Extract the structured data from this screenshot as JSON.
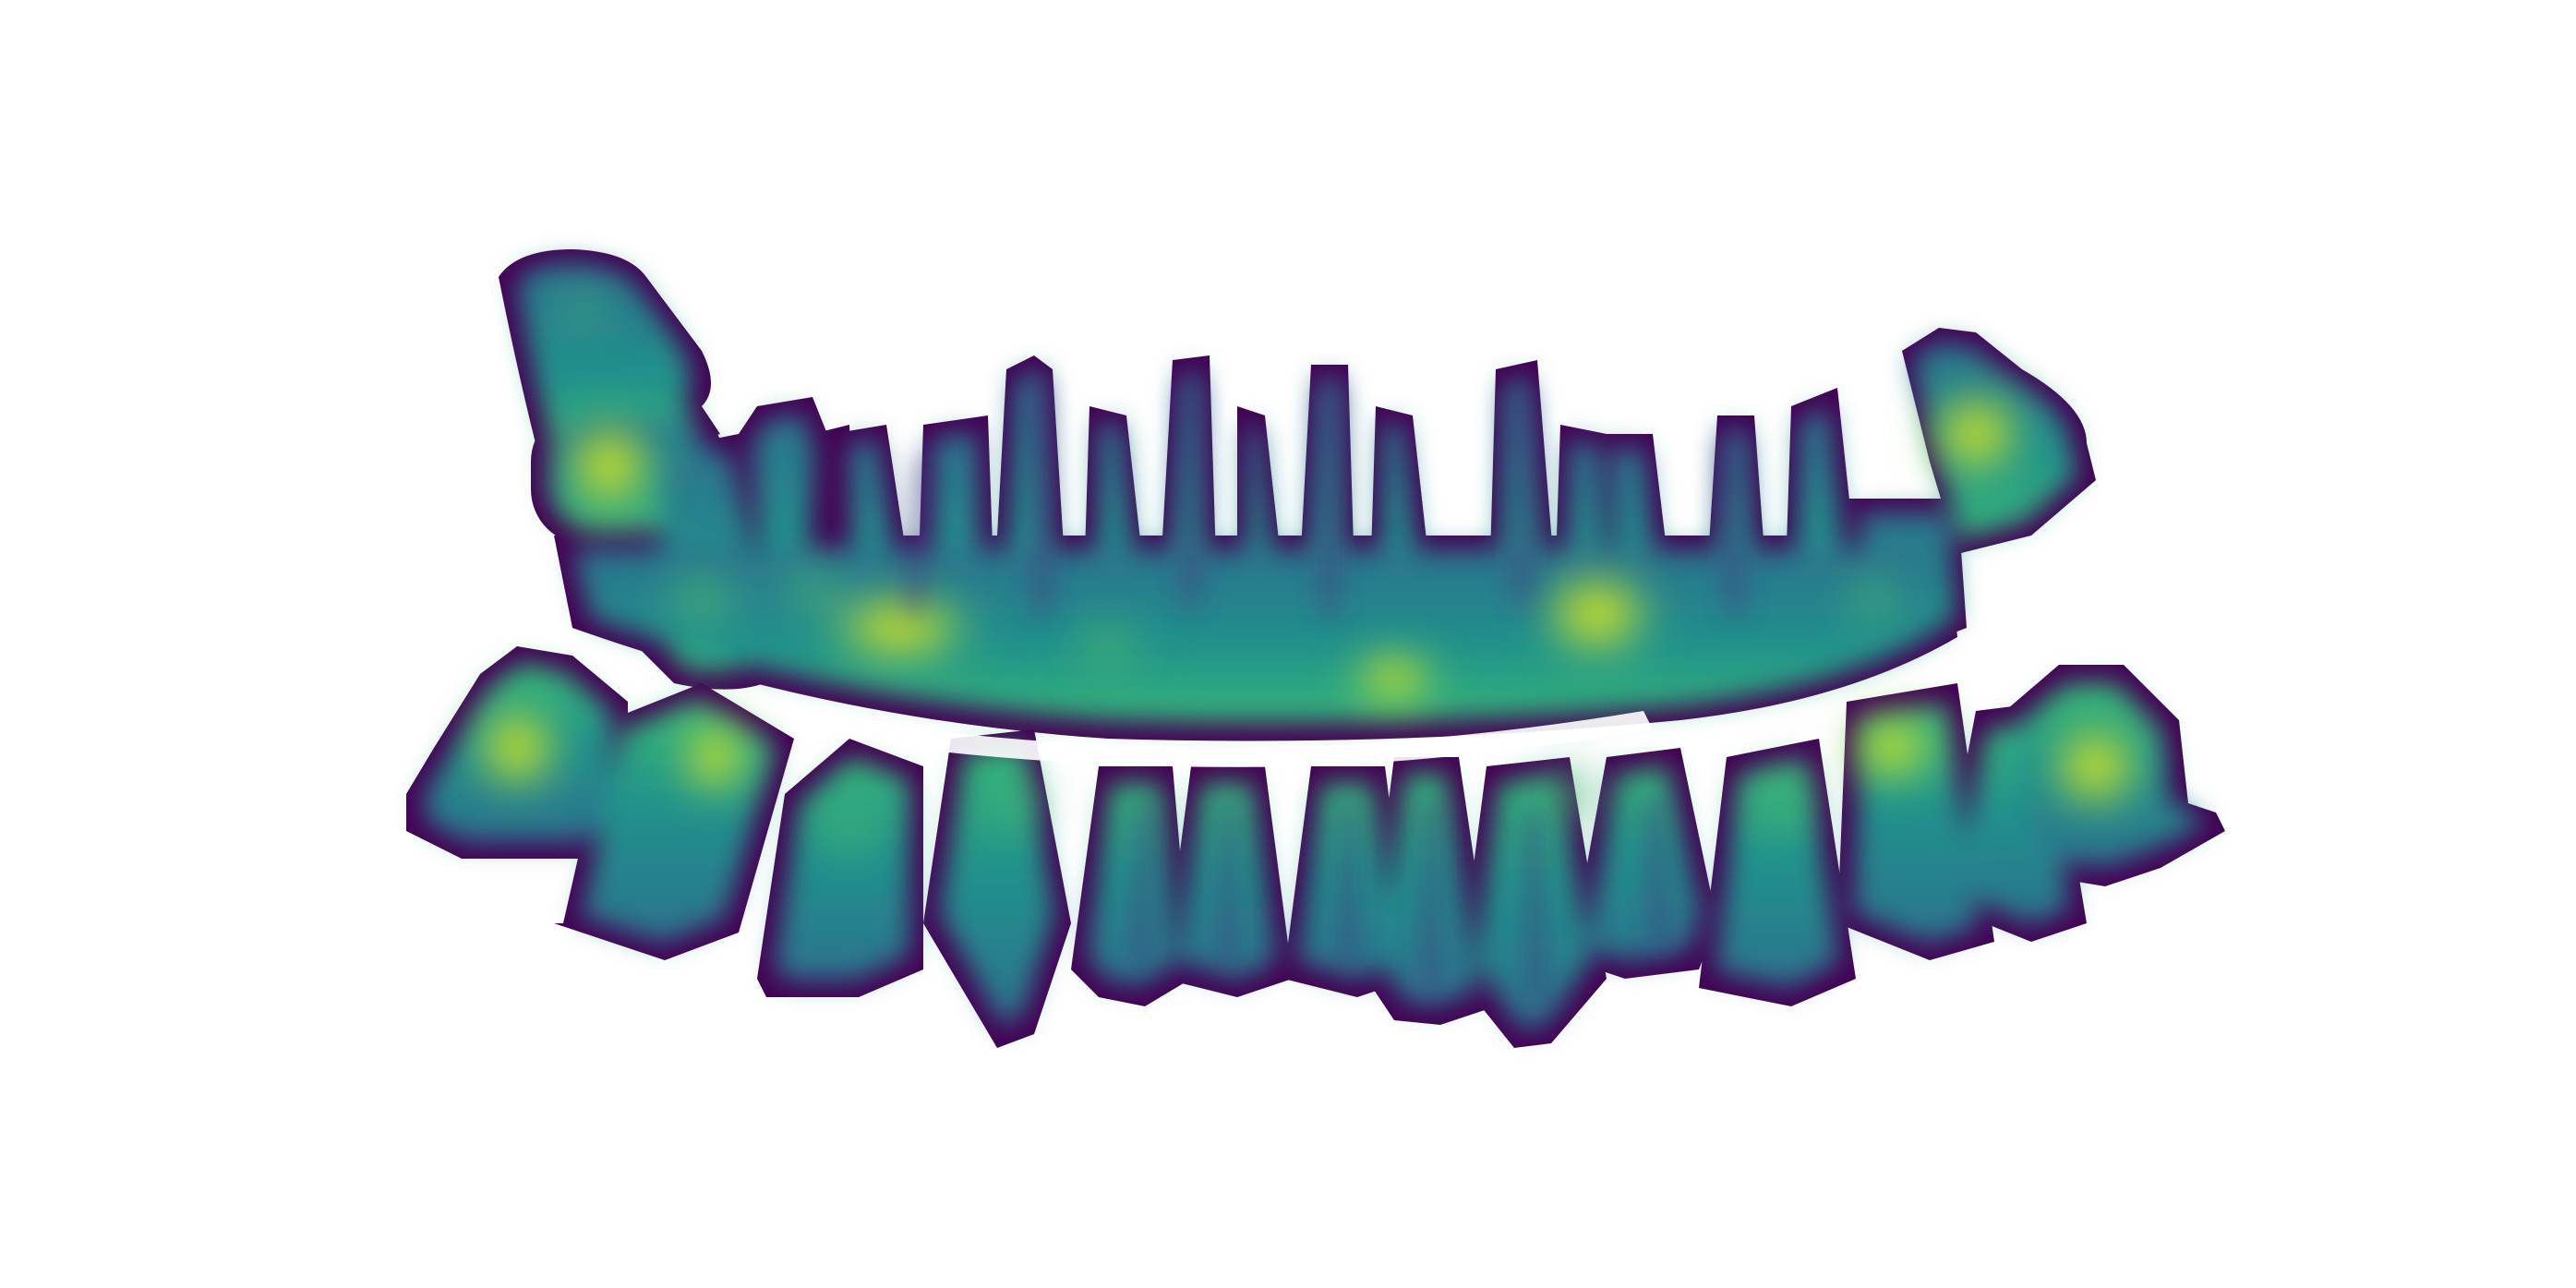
{
  "image": {
    "subject": "dental-arch-heatmap",
    "colormap": "viridis",
    "background": "#ffffff",
    "outline_color": "#440154",
    "colors": {
      "low": "#440154",
      "mid_low": "#3b528b",
      "mid": "#21918c",
      "mid_high": "#5ec962",
      "high": "#fde725"
    }
  },
  "upper_arch": {
    "tooth_count": 14
  },
  "lower_arch": {
    "tooth_count": 14
  }
}
